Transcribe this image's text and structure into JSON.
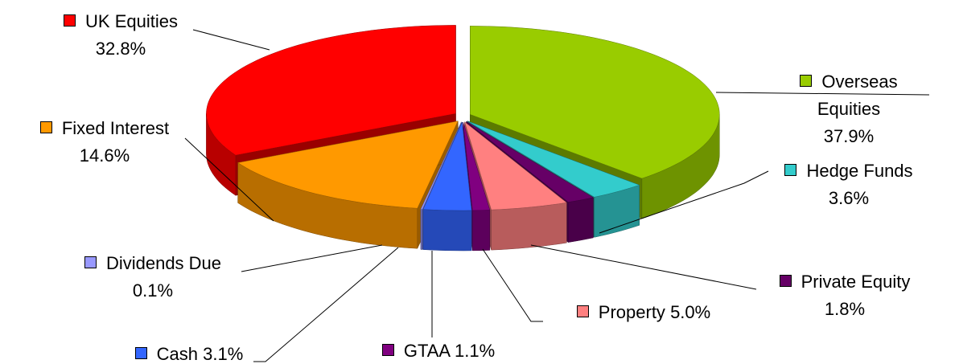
{
  "chart_data": {
    "type": "pie3d",
    "categories": [
      "UK Equities",
      "Overseas Equities",
      "Hedge Funds",
      "Private Equity",
      "Property",
      "GTAA",
      "Cash",
      "Dividends Due",
      "Fixed Interest"
    ],
    "values": [
      32.8,
      37.9,
      3.6,
      1.8,
      5.0,
      1.1,
      3.1,
      0.1,
      14.6
    ],
    "value_labels": [
      "32.8%",
      "37.9%",
      "3.6%",
      "1.8%",
      "5.0%",
      "1.1%",
      "3.1%",
      "0.1%",
      "14.6%"
    ],
    "colors": [
      "#ff0000",
      "#99cc00",
      "#33cccc",
      "#660066",
      "#ff8080",
      "#800080",
      "#3366ff",
      "#9999ff",
      "#ff9900"
    ]
  }
}
